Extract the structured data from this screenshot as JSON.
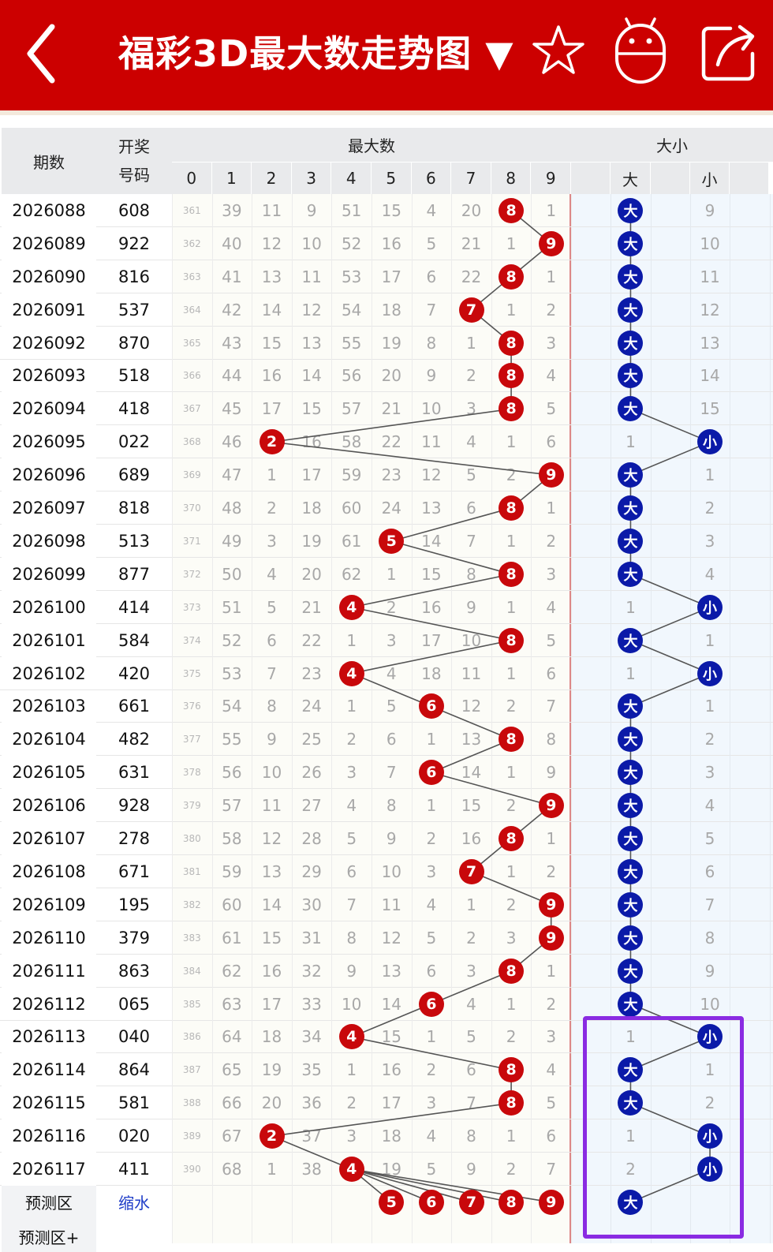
{
  "header": {
    "title": "福彩3D最大数走势图 ▼",
    "icons": [
      "back-arrow-icon",
      "star-icon",
      "robot-icon",
      "share-icon"
    ]
  },
  "table": {
    "col_period": "期数",
    "col_draw_line1": "开奖",
    "col_draw_line2": "号码",
    "group_max": "最大数",
    "group_size": "大小",
    "digits": [
      "0",
      "1",
      "2",
      "3",
      "4",
      "5",
      "6",
      "7",
      "8",
      "9"
    ],
    "size_big": "大",
    "size_small": "小",
    "rows": [
      {
        "period": "2026088",
        "draw": "608",
        "max": 8,
        "size": "大",
        "miss": [
          "361",
          "39",
          "11",
          "9",
          "51",
          "15",
          "4",
          "20",
          "",
          "1"
        ],
        "miss_big": "",
        "miss_small": "9"
      },
      {
        "period": "2026089",
        "draw": "922",
        "max": 9,
        "size": "大",
        "miss": [
          "362",
          "40",
          "12",
          "10",
          "52",
          "16",
          "5",
          "21",
          "1",
          ""
        ],
        "miss_big": "",
        "miss_small": "10"
      },
      {
        "period": "2026090",
        "draw": "816",
        "max": 8,
        "size": "大",
        "miss": [
          "363",
          "41",
          "13",
          "11",
          "53",
          "17",
          "6",
          "22",
          "",
          "1"
        ],
        "miss_big": "",
        "miss_small": "11"
      },
      {
        "period": "2026091",
        "draw": "537",
        "max": 7,
        "size": "大",
        "miss": [
          "364",
          "42",
          "14",
          "12",
          "54",
          "18",
          "7",
          "",
          "1",
          "2"
        ],
        "miss_big": "",
        "miss_small": "12"
      },
      {
        "period": "2026092",
        "draw": "870",
        "max": 8,
        "size": "大",
        "miss": [
          "365",
          "43",
          "15",
          "13",
          "55",
          "19",
          "8",
          "1",
          "",
          "3"
        ],
        "miss_big": "",
        "miss_small": "13"
      },
      {
        "period": "2026093",
        "draw": "518",
        "max": 8,
        "size": "大",
        "miss": [
          "366",
          "44",
          "16",
          "14",
          "56",
          "20",
          "9",
          "2",
          "",
          "4"
        ],
        "miss_big": "",
        "miss_small": "14"
      },
      {
        "period": "2026094",
        "draw": "418",
        "max": 8,
        "size": "大",
        "miss": [
          "367",
          "45",
          "17",
          "15",
          "57",
          "21",
          "10",
          "3",
          "",
          "5"
        ],
        "miss_big": "",
        "miss_small": "15"
      },
      {
        "period": "2026095",
        "draw": "022",
        "max": 2,
        "size": "小",
        "miss": [
          "368",
          "46",
          "",
          "16",
          "58",
          "22",
          "11",
          "4",
          "1",
          "6"
        ],
        "miss_big": "1",
        "miss_small": ""
      },
      {
        "period": "2026096",
        "draw": "689",
        "max": 9,
        "size": "大",
        "miss": [
          "369",
          "47",
          "1",
          "17",
          "59",
          "23",
          "12",
          "5",
          "2",
          ""
        ],
        "miss_big": "",
        "miss_small": "1"
      },
      {
        "period": "2026097",
        "draw": "818",
        "max": 8,
        "size": "大",
        "miss": [
          "370",
          "48",
          "2",
          "18",
          "60",
          "24",
          "13",
          "6",
          "",
          "1"
        ],
        "miss_big": "",
        "miss_small": "2"
      },
      {
        "period": "2026098",
        "draw": "513",
        "max": 5,
        "size": "大",
        "miss": [
          "371",
          "49",
          "3",
          "19",
          "61",
          "",
          "14",
          "7",
          "1",
          "2"
        ],
        "miss_big": "",
        "miss_small": "3"
      },
      {
        "period": "2026099",
        "draw": "877",
        "max": 8,
        "size": "大",
        "miss": [
          "372",
          "50",
          "4",
          "20",
          "62",
          "1",
          "15",
          "8",
          "",
          "3"
        ],
        "miss_big": "",
        "miss_small": "4"
      },
      {
        "period": "2026100",
        "draw": "414",
        "max": 4,
        "size": "小",
        "miss": [
          "373",
          "51",
          "5",
          "21",
          "",
          "2",
          "16",
          "9",
          "1",
          "4"
        ],
        "miss_big": "1",
        "miss_small": ""
      },
      {
        "period": "2026101",
        "draw": "584",
        "max": 8,
        "size": "大",
        "miss": [
          "374",
          "52",
          "6",
          "22",
          "1",
          "3",
          "17",
          "10",
          "",
          "5"
        ],
        "miss_big": "",
        "miss_small": "1"
      },
      {
        "period": "2026102",
        "draw": "420",
        "max": 4,
        "size": "小",
        "miss": [
          "375",
          "53",
          "7",
          "23",
          "",
          "4",
          "18",
          "11",
          "1",
          "6"
        ],
        "miss_big": "1",
        "miss_small": ""
      },
      {
        "period": "2026103",
        "draw": "661",
        "max": 6,
        "size": "大",
        "miss": [
          "376",
          "54",
          "8",
          "24",
          "1",
          "5",
          "",
          "12",
          "2",
          "7"
        ],
        "miss_big": "",
        "miss_small": "1"
      },
      {
        "period": "2026104",
        "draw": "482",
        "max": 8,
        "size": "大",
        "miss": [
          "377",
          "55",
          "9",
          "25",
          "2",
          "6",
          "1",
          "13",
          "",
          "8"
        ],
        "miss_big": "",
        "miss_small": "2"
      },
      {
        "period": "2026105",
        "draw": "631",
        "max": 6,
        "size": "大",
        "miss": [
          "378",
          "56",
          "10",
          "26",
          "3",
          "7",
          "",
          "14",
          "1",
          "9"
        ],
        "miss_big": "",
        "miss_small": "3"
      },
      {
        "period": "2026106",
        "draw": "928",
        "max": 9,
        "size": "大",
        "miss": [
          "379",
          "57",
          "11",
          "27",
          "4",
          "8",
          "1",
          "15",
          "2",
          ""
        ],
        "miss_big": "",
        "miss_small": "4"
      },
      {
        "period": "2026107",
        "draw": "278",
        "max": 8,
        "size": "大",
        "miss": [
          "380",
          "58",
          "12",
          "28",
          "5",
          "9",
          "2",
          "16",
          "",
          "1"
        ],
        "miss_big": "",
        "miss_small": "5"
      },
      {
        "period": "2026108",
        "draw": "671",
        "max": 7,
        "size": "大",
        "miss": [
          "381",
          "59",
          "13",
          "29",
          "6",
          "10",
          "3",
          "",
          "1",
          "2"
        ],
        "miss_big": "",
        "miss_small": "6"
      },
      {
        "period": "2026109",
        "draw": "195",
        "max": 9,
        "size": "大",
        "miss": [
          "382",
          "60",
          "14",
          "30",
          "7",
          "11",
          "4",
          "1",
          "2",
          ""
        ],
        "miss_big": "",
        "miss_small": "7"
      },
      {
        "period": "2026110",
        "draw": "379",
        "max": 9,
        "size": "大",
        "miss": [
          "383",
          "61",
          "15",
          "31",
          "8",
          "12",
          "5",
          "2",
          "3",
          ""
        ],
        "miss_big": "",
        "miss_small": "8"
      },
      {
        "period": "2026111",
        "draw": "863",
        "max": 8,
        "size": "大",
        "miss": [
          "384",
          "62",
          "16",
          "32",
          "9",
          "13",
          "6",
          "3",
          "",
          "1"
        ],
        "miss_big": "",
        "miss_small": "9"
      },
      {
        "period": "2026112",
        "draw": "065",
        "max": 6,
        "size": "大",
        "miss": [
          "385",
          "63",
          "17",
          "33",
          "10",
          "14",
          "",
          "4",
          "1",
          "2"
        ],
        "miss_big": "",
        "miss_small": "10"
      },
      {
        "period": "2026113",
        "draw": "040",
        "max": 4,
        "size": "小",
        "miss": [
          "386",
          "64",
          "18",
          "34",
          "",
          "15",
          "1",
          "5",
          "2",
          "3"
        ],
        "miss_big": "1",
        "miss_small": ""
      },
      {
        "period": "2026114",
        "draw": "864",
        "max": 8,
        "size": "大",
        "miss": [
          "387",
          "65",
          "19",
          "35",
          "1",
          "16",
          "2",
          "6",
          "",
          "4"
        ],
        "miss_big": "",
        "miss_small": "1"
      },
      {
        "period": "2026115",
        "draw": "581",
        "max": 8,
        "size": "大",
        "miss": [
          "388",
          "66",
          "20",
          "36",
          "2",
          "17",
          "3",
          "7",
          "",
          "5"
        ],
        "miss_big": "",
        "miss_small": "2"
      },
      {
        "period": "2026116",
        "draw": "020",
        "max": 2,
        "size": "小",
        "miss": [
          "389",
          "67",
          "",
          "37",
          "3",
          "18",
          "4",
          "8",
          "1",
          "6"
        ],
        "miss_big": "1",
        "miss_small": ""
      },
      {
        "period": "2026117",
        "draw": "411",
        "max": 4,
        "size": "小",
        "miss": [
          "390",
          "68",
          "1",
          "38",
          "",
          "19",
          "5",
          "9",
          "2",
          "7"
        ],
        "miss_big": "2",
        "miss_small": ""
      }
    ],
    "predict_label": "预测区",
    "predict_action": "缩水",
    "predict_digits": [
      "5",
      "6",
      "7",
      "8",
      "9"
    ],
    "predict_size": "大",
    "predict_plus_label": "预测区+"
  },
  "colors": {
    "header_red": "#cc0000",
    "ball_red": "#c8080b",
    "ball_blue": "#0b1aa8",
    "highlight_purple": "#8a2be2"
  }
}
